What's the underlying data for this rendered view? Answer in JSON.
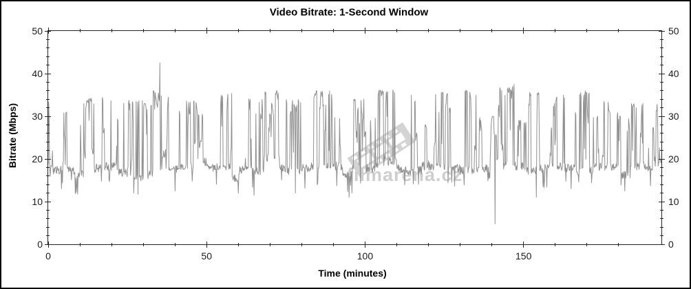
{
  "title": "Video Bitrate: 1-Second Window",
  "x_axis": {
    "label": "Time (minutes)",
    "min": 0,
    "max": 193.5,
    "major_ticks": [
      0,
      50,
      100,
      150
    ],
    "major_step": 50,
    "minor_step": 10,
    "mirrored": true
  },
  "y_axis": {
    "label": "Bitrate (Mbps)",
    "min": 0,
    "max": 50,
    "major_ticks": [
      0,
      10,
      20,
      30,
      40,
      50
    ],
    "major_step": 10,
    "minor_step": 2,
    "labels_both_sides": true
  },
  "watermark": {
    "text": "filmarena.cz",
    "icon": "film-strip-icon"
  },
  "colors": {
    "background": "#ffffff",
    "frame_border": "#000000",
    "axis": "#222222",
    "tick_text": "#1a1a1a",
    "line": "#8f8f8f",
    "watermark": "#9e9e9e"
  },
  "chart_data": {
    "type": "line",
    "title": "Video Bitrate: 1-Second Window",
    "xlabel": "Time (minutes)",
    "ylabel": "Bitrate (Mbps)",
    "xlim": [
      0,
      193.5
    ],
    "ylim": [
      0,
      50
    ],
    "grid": false,
    "legend": "none",
    "series_name": "video-bitrate-1s",
    "sample_interval_seconds": 1,
    "baseline_mbps": 18,
    "typical_burst_max_mbps": 34.5,
    "peak_point": [
      35.3,
      42.5
    ],
    "min_point": [
      141,
      4.8
    ],
    "envelope_t_lo_hi": [
      [
        0,
        17,
        34
      ],
      [
        1.5,
        16,
        22
      ],
      [
        4,
        17,
        31
      ],
      [
        6,
        16.5,
        20
      ],
      [
        8,
        15,
        33
      ],
      [
        12,
        20,
        34.5
      ],
      [
        14.5,
        16.5,
        20
      ],
      [
        17,
        17,
        34.5
      ],
      [
        22,
        15.5,
        34
      ],
      [
        27,
        14,
        34
      ],
      [
        30,
        15,
        33
      ],
      [
        33,
        17,
        36
      ],
      [
        36,
        20,
        34.5
      ],
      [
        38,
        16.5,
        20.5
      ],
      [
        41,
        17,
        34
      ],
      [
        47,
        18,
        31
      ],
      [
        50,
        16.5,
        19.5
      ],
      [
        53,
        17,
        35.5
      ],
      [
        58,
        14,
        21
      ],
      [
        60,
        16,
        35
      ],
      [
        68,
        19,
        36
      ],
      [
        73,
        16.5,
        20
      ],
      [
        75,
        16,
        34
      ],
      [
        80,
        16.5,
        19.5
      ],
      [
        83,
        17,
        36
      ],
      [
        90,
        17,
        30
      ],
      [
        93,
        15,
        20
      ],
      [
        96,
        17,
        34
      ],
      [
        100,
        16.5,
        30
      ],
      [
        104,
        18,
        36.5
      ],
      [
        110,
        16.5,
        19.5
      ],
      [
        113,
        16,
        35
      ],
      [
        118,
        17,
        28
      ],
      [
        121,
        17,
        36
      ],
      [
        127,
        16.5,
        20
      ],
      [
        130,
        16,
        36
      ],
      [
        136,
        16.5,
        30
      ],
      [
        139,
        15,
        30
      ],
      [
        142,
        17,
        37
      ],
      [
        148,
        17,
        29
      ],
      [
        151,
        16,
        36
      ],
      [
        155,
        16.5,
        19.5
      ],
      [
        158,
        17,
        35
      ],
      [
        163,
        16.5,
        21
      ],
      [
        166,
        16,
        36
      ],
      [
        172,
        17,
        30
      ],
      [
        175,
        17,
        34
      ],
      [
        180,
        15,
        30
      ],
      [
        184,
        17,
        33
      ],
      [
        188,
        16.5,
        28
      ],
      [
        191,
        18,
        33.5
      ]
    ],
    "spikes_t_v": [
      [
        4.2,
        13
      ],
      [
        9,
        13.5
      ],
      [
        27,
        12
      ],
      [
        35.3,
        42.5
      ],
      [
        40,
        12.5
      ],
      [
        60,
        12
      ],
      [
        65,
        11.5
      ],
      [
        78,
        12
      ],
      [
        95,
        11
      ],
      [
        141,
        4.8
      ],
      [
        147,
        37.5
      ],
      [
        154,
        11
      ],
      [
        165,
        13
      ],
      [
        182,
        12.5
      ]
    ],
    "noise_seed": 7,
    "render_sample_dt_min": 0.15
  }
}
